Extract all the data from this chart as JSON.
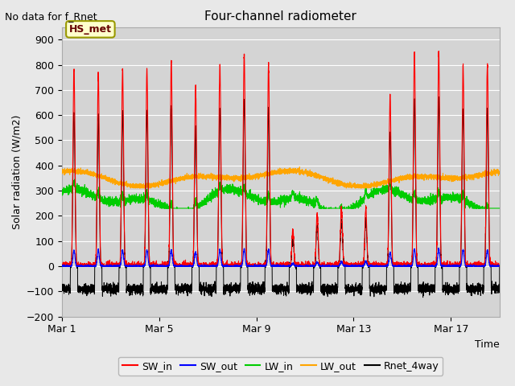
{
  "title": "Four-channel radiometer",
  "top_left_text": "No data for f_Rnet",
  "ylabel": "Solar radiation (W/m2)",
  "xlabel": "Time",
  "ylim": [
    -200,
    950
  ],
  "yticks": [
    -200,
    -100,
    0,
    100,
    200,
    300,
    400,
    500,
    600,
    700,
    800,
    900
  ],
  "xtick_labels": [
    "Mar 1",
    "Mar 5",
    "Mar 9",
    "Mar 13",
    "Mar 17"
  ],
  "xtick_positions": [
    0,
    4,
    8,
    12,
    16
  ],
  "fig_bg_color": "#e8e8e8",
  "plot_bg_color": "#d4d4d4",
  "legend_colors": [
    "#ff0000",
    "#0000ff",
    "#00cc00",
    "#ffa500",
    "#000000"
  ],
  "annotation_box_text": "HS_met",
  "annotation_box_color": "#ffffcc",
  "annotation_box_edge_color": "#999900",
  "grid_color": "#ffffff",
  "num_days": 18,
  "pts_per_day": 288
}
